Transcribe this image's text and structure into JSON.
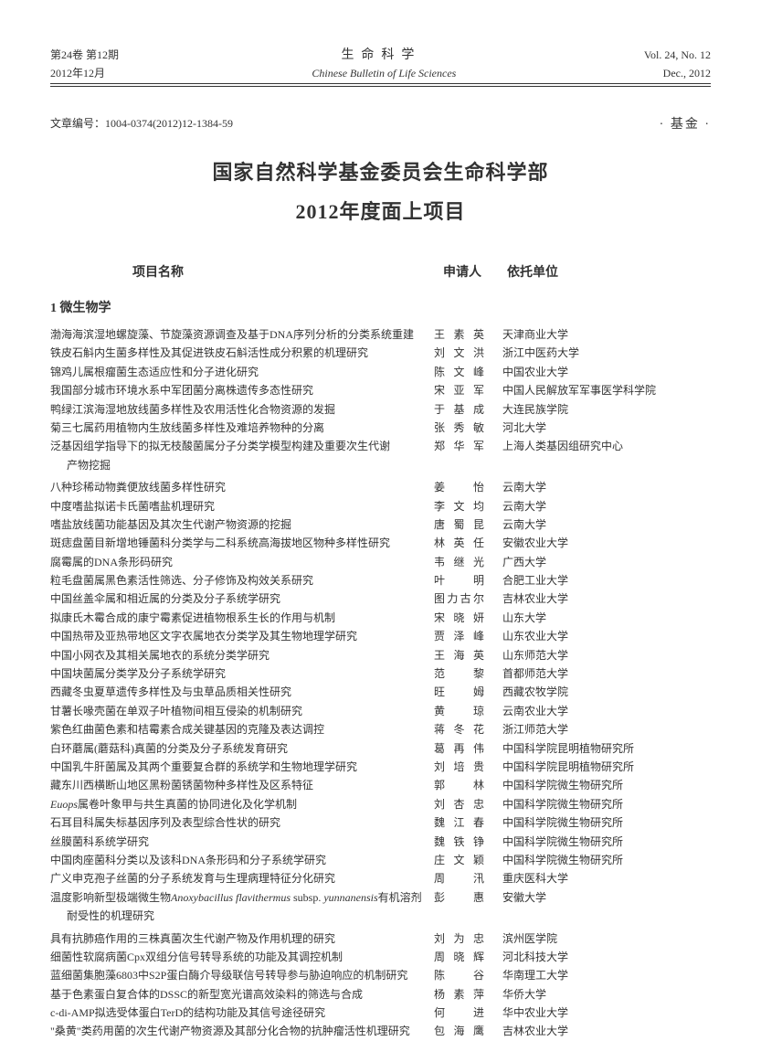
{
  "header": {
    "vol_issue_cn": "第24卷 第12期",
    "journal_cn": "生命科学",
    "vol_issue_en": "Vol. 24, No. 12",
    "date_cn": "2012年12月",
    "journal_en": "Chinese Bulletin of Life Sciences",
    "date_en": "Dec., 2012"
  },
  "article_id_label": "文章编号：",
  "article_id": "1004-0374(2012)12-1384-59",
  "fund_tag": "· 基金 ·",
  "title_line1": "国家自然科学基金委员会生命科学部",
  "title_line2": "2012年度面上项目",
  "col_headers": {
    "name": "项目名称",
    "applicant": "申请人",
    "institution": "依托单位"
  },
  "section1_title": "1 微生物学",
  "rows": [
    {
      "name": "渤海海滨湿地螺旋藻、节旋藻资源调查及基于DNA序列分析的分类系统重建",
      "app": "王素英",
      "inst": "天津商业大学"
    },
    {
      "name": "铁皮石斛内生菌多样性及其促进铁皮石斛活性成分积累的机理研究",
      "app": "刘文洪",
      "inst": "浙江中医药大学"
    },
    {
      "name": "锦鸡儿属根瘤菌生态适应性和分子进化研究",
      "app": "陈文峰",
      "inst": "中国农业大学"
    },
    {
      "name": "我国部分城市环境水系中军团菌分离株遗传多态性研究",
      "app": "宋亚军",
      "inst": "中国人民解放军军事医学科学院"
    },
    {
      "name": "鸭绿江滨海湿地放线菌多样性及农用活性化合物资源的发掘",
      "app": "于基成",
      "inst": "大连民族学院"
    },
    {
      "name": "菊三七属药用植物内生放线菌多样性及难培养物种的分离",
      "app": "张秀敏",
      "inst": "河北大学"
    },
    {
      "name": "泛基因组学指导下的拟无枝酸菌属分子分类学模型构建及重要次生代谢",
      "app": "郑华军",
      "inst": "上海人类基因组研究中心",
      "cont": "产物挖掘"
    },
    {
      "name": "八种珍稀动物粪便放线菌多样性研究",
      "app": "姜　怡",
      "inst": "云南大学",
      "gap": true
    },
    {
      "name": "中度嗜盐拟诺卡氏菌嗜盐机理研究",
      "app": "李文均",
      "inst": "云南大学"
    },
    {
      "name": "嗜盐放线菌功能基因及其次生代谢产物资源的挖掘",
      "app": "唐蜀昆",
      "inst": "云南大学"
    },
    {
      "name": "斑痣盘菌目新增地锤菌科分类学与二科系统高海拔地区物种多样性研究",
      "app": "林英任",
      "inst": "安徽农业大学"
    },
    {
      "name": "腐霉属的DNA条形码研究",
      "app": "韦继光",
      "inst": "广西大学"
    },
    {
      "name": "粒毛盘菌属黑色素活性筛选、分子修饰及构效关系研究",
      "app": "叶　明",
      "inst": "合肥工业大学"
    },
    {
      "name": "中国丝盖伞属和相近属的分类及分子系统学研究",
      "app": "图力古尔",
      "inst": "吉林农业大学"
    },
    {
      "name": "拟康氏木霉合成的康宁霉素促进植物根系生长的作用与机制",
      "app": "宋晓妍",
      "inst": "山东大学"
    },
    {
      "name": "中国热带及亚热带地区文字衣属地衣分类学及其生物地理学研究",
      "app": "贾泽峰",
      "inst": "山东农业大学"
    },
    {
      "name": "中国小网衣及其相关属地衣的系统分类学研究",
      "app": "王海英",
      "inst": "山东师范大学"
    },
    {
      "name": "中国块菌属分类学及分子系统学研究",
      "app": "范　黎",
      "inst": "首都师范大学"
    },
    {
      "name": "西藏冬虫夏草遗传多样性及与虫草品质相关性研究",
      "app": "旺　姆",
      "inst": "西藏农牧学院"
    },
    {
      "name": "甘薯长喙壳菌在单双子叶植物间相互侵染的机制研究",
      "app": "黄　琼",
      "inst": "云南农业大学"
    },
    {
      "name": "紫色红曲菌色素和桔霉素合成关键基因的克隆及表达调控",
      "app": "蒋冬花",
      "inst": "浙江师范大学"
    },
    {
      "name": "白环蘑属(蘑菇科)真菌的分类及分子系统发育研究",
      "app": "葛再伟",
      "inst": "中国科学院昆明植物研究所"
    },
    {
      "name": "中国乳牛肝菌属及其两个重要复合群的系统学和生物地理学研究",
      "app": "刘培贵",
      "inst": "中国科学院昆明植物研究所"
    },
    {
      "name": "藏东川西横断山地区黑粉菌锈菌物种多样性及区系特征",
      "app": "郭　林",
      "inst": "中国科学院微生物研究所"
    },
    {
      "name_html": "<span class=\"latin\">Euops</span>属卷叶象甲与共生真菌的协同进化及化学机制",
      "app": "刘杏忠",
      "inst": "中国科学院微生物研究所"
    },
    {
      "name": "石耳目科属失标基因序列及表型综合性状的研究",
      "app": "魏江春",
      "inst": "中国科学院微生物研究所"
    },
    {
      "name": "丝膜菌科系统学研究",
      "app": "魏铁铮",
      "inst": "中国科学院微生物研究所"
    },
    {
      "name": "中国肉座菌科分类以及该科DNA条形码和分子系统学研究",
      "app": "庄文颖",
      "inst": "中国科学院微生物研究所"
    },
    {
      "name": "广义申克孢子丝菌的分子系统发育与生理病理特征分化研究",
      "app": "周　汛",
      "inst": "重庆医科大学"
    },
    {
      "name_html": "温度影响新型极端微生物<span class=\"latin\">Anoxybacillus flavithermus</span> subsp. <span class=\"latin\">yunnanensis</span>有机溶剂",
      "app": "彭　惠",
      "inst": "安徽大学",
      "cont": "耐受性的机理研究"
    },
    {
      "name": "具有抗肺癌作用的三株真菌次生代谢产物及作用机理的研究",
      "app": "刘为忠",
      "inst": "滨州医学院",
      "gap": true
    },
    {
      "name": "细菌性软腐病菌Cpx双组分信号转导系统的功能及其调控机制",
      "app": "周晓辉",
      "inst": "河北科技大学"
    },
    {
      "name": "蓝细菌集胞藻6803中S2P蛋白酶介导级联信号转导参与胁迫响应的机制研究",
      "app": "陈　谷",
      "inst": "华南理工大学"
    },
    {
      "name": "基于色素蛋白复合体的DSSC的新型宽光谱高效染料的筛选与合成",
      "app": "杨素萍",
      "inst": "华侨大学"
    },
    {
      "name": "c-di-AMP拟选受体蛋白TerD的结构功能及其信号途径研究",
      "app": "何　进",
      "inst": "华中农业大学"
    },
    {
      "name": "\"桑黄\"类药用菌的次生代谢产物资源及其部分化合物的抗肿瘤活性机理研究",
      "app": "包海鹰",
      "inst": "吉林农业大学"
    }
  ]
}
